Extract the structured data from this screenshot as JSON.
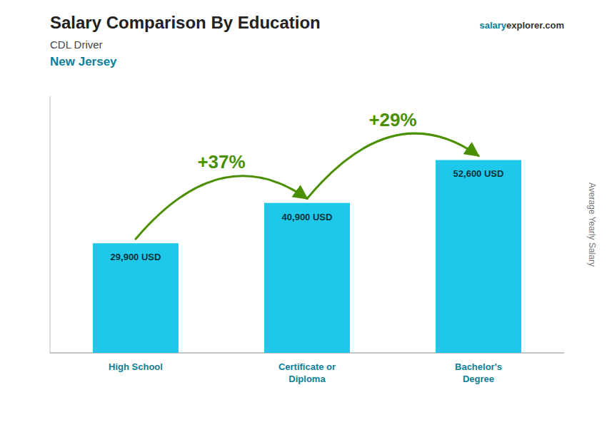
{
  "chart_data": {
    "type": "bar",
    "title": "Salary Comparison By Education",
    "subtitle": [
      "CDL Driver",
      "New Jersey"
    ],
    "ylabel": "Average Yearly Salary",
    "categories": [
      "High School",
      "Certificate or\nDiploma",
      "Bachelor's\nDegree"
    ],
    "values": [
      29900,
      40900,
      52600
    ],
    "value_labels": [
      "29,900 USD",
      "40,900 USD",
      "52,600 USD"
    ],
    "data_labels": true,
    "annotations": [
      "+37%",
      "+29%",
      "salary",
      "explorer.com"
    ],
    "color": "#1ec8e8",
    "ylim": [
      0,
      70000
    ],
    "tick_labels": false
  }
}
